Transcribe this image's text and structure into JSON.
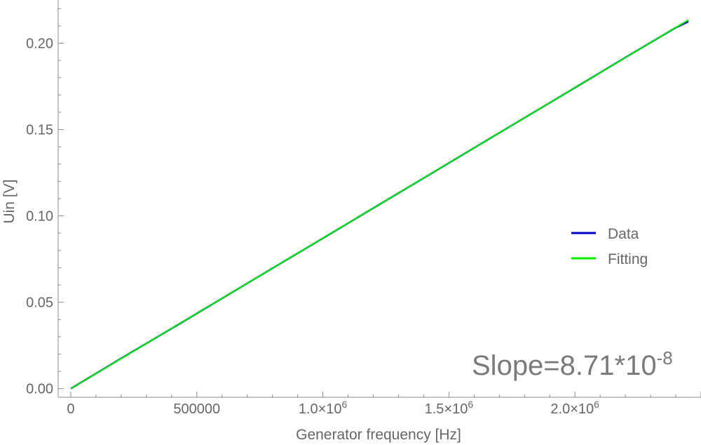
{
  "chart_data": {
    "type": "line",
    "title": "",
    "xlabel": "Generator frequency [Hz]",
    "ylabel": "Uin [V]",
    "xlim": [
      -50000,
      2500000
    ],
    "ylim": [
      -0.005,
      0.225
    ],
    "x_ticks": [
      {
        "value": 0,
        "label": "0"
      },
      {
        "value": 500000,
        "label": "500000"
      },
      {
        "value": 1000000,
        "label": "1.0×10",
        "exp": "6"
      },
      {
        "value": 1500000,
        "label": "1.5×10",
        "exp": "6"
      },
      {
        "value": 2000000,
        "label": "2.0×10",
        "exp": "6"
      }
    ],
    "y_ticks": [
      {
        "value": 0.0,
        "label": "0.00"
      },
      {
        "value": 0.05,
        "label": "0.05"
      },
      {
        "value": 0.1,
        "label": "0.10"
      },
      {
        "value": 0.15,
        "label": "0.15"
      },
      {
        "value": 0.2,
        "label": "0.20"
      }
    ],
    "grid": false,
    "legend_position": "right",
    "series": [
      {
        "name": "Data",
        "color": "#0000cc",
        "x": [
          0,
          200000,
          400000,
          600000,
          800000,
          1000000,
          1200000,
          1400000,
          1600000,
          1800000,
          2000000,
          2200000,
          2400000,
          2450000
        ],
        "y": [
          0.0,
          0.0175,
          0.0348,
          0.0522,
          0.0697,
          0.0871,
          0.1045,
          0.1219,
          0.1394,
          0.1568,
          0.1742,
          0.1917,
          0.209,
          0.2125
        ]
      },
      {
        "name": "Fitting",
        "color": "#00ee00",
        "x": [
          0,
          2450000
        ],
        "y": [
          0.0,
          0.2134
        ]
      }
    ],
    "annotation": {
      "text": "Slope=8.71*10",
      "exp": "-8",
      "position": "bottom-right"
    }
  }
}
